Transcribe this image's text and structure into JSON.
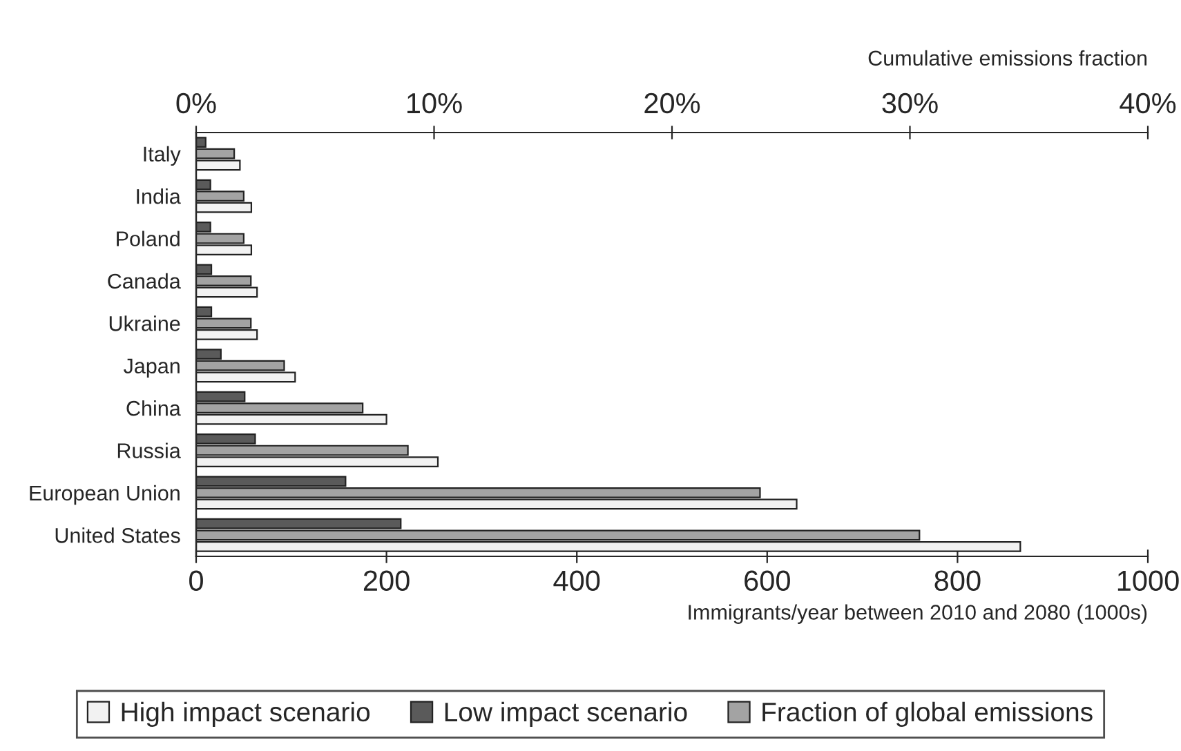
{
  "chart_data": {
    "type": "bar",
    "orientation": "horizontal",
    "categories": [
      "Italy",
      "India",
      "Poland",
      "Canada",
      "Ukraine",
      "Japan",
      "China",
      "Russia",
      "European Union",
      "United States"
    ],
    "series": [
      {
        "name": "High impact scenario",
        "color": "#f2f2f2",
        "values": [
          46,
          58,
          58,
          64,
          64,
          104,
          200,
          254,
          631,
          866
        ]
      },
      {
        "name": "Low impact scenario",
        "color": "#5a5a5a",
        "values": [
          10,
          15,
          15,
          16,
          16,
          26,
          51,
          62,
          157,
          215
        ]
      },
      {
        "name": "Fraction of global emissions",
        "color": "#a3a3a3",
        "axis": "x2",
        "values": [
          1.6,
          2.0,
          2.0,
          2.3,
          2.3,
          3.7,
          7.0,
          8.9,
          23.7,
          30.4
        ]
      }
    ],
    "xlabel": "Immigrants/year between 2010 and 2080 (1000s)",
    "x2label": "Cumulative emissions fraction",
    "xlim": [
      0,
      1000
    ],
    "xticks": [
      0,
      200,
      400,
      600,
      800,
      1000
    ],
    "x2lim": [
      0,
      40
    ],
    "x2ticks": [
      {
        "value": 0,
        "label": "0%"
      },
      {
        "value": 10,
        "label": "10%"
      },
      {
        "value": 20,
        "label": "20%"
      },
      {
        "value": 30,
        "label": "30%"
      },
      {
        "value": 40,
        "label": "40%"
      }
    ],
    "legend": "bottom",
    "grid": false
  }
}
